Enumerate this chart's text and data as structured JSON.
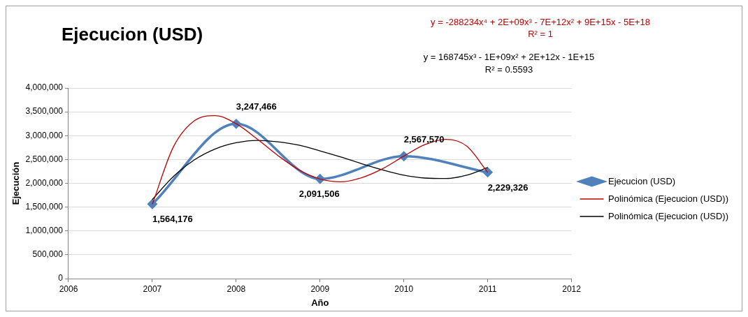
{
  "chart_data": {
    "type": "line",
    "title": "Ejecucion (USD)",
    "xlabel": "Año",
    "ylabel": "Ejecución",
    "x": [
      2007,
      2008,
      2009,
      2010,
      2011
    ],
    "series": [
      {
        "name": "Ejecucion (USD)",
        "color": "#4f81bd",
        "values": [
          1564176,
          3247466,
          2091506,
          2567570,
          2229326
        ],
        "value_labels": [
          "1,564,176",
          "3,247,466",
          "2,091,506",
          "2,567,570",
          "2,229,326"
        ],
        "marker": "diamond"
      },
      {
        "name": "Polinómica (Ejecucion (USD))",
        "color": "#c00000",
        "type": "line",
        "marker": "none",
        "x": [
          2007,
          2007.25,
          2007.5,
          2007.75,
          2008,
          2008.25,
          2008.5,
          2008.75,
          2009,
          2009.25,
          2009.5,
          2009.75,
          2010,
          2010.25,
          2010.5,
          2010.75,
          2011
        ],
        "values": [
          1560000,
          2760000,
          3310000,
          3420000,
          3250000,
          2930000,
          2580000,
          2280000,
          2090000,
          2030000,
          2120000,
          2310000,
          2570000,
          2810000,
          2920000,
          2780000,
          2230000
        ]
      },
      {
        "name": "Polinómica (Ejecucion (USD))",
        "color": "#000000",
        "type": "line",
        "marker": "none",
        "x": [
          2007,
          2007.25,
          2007.5,
          2007.75,
          2008,
          2008.25,
          2008.5,
          2008.75,
          2009,
          2009.25,
          2009.5,
          2009.75,
          2010,
          2010.25,
          2010.5,
          2010.75,
          2011
        ],
        "values": [
          1660000,
          2140000,
          2490000,
          2720000,
          2850000,
          2900000,
          2870000,
          2800000,
          2680000,
          2550000,
          2410000,
          2280000,
          2170000,
          2110000,
          2100000,
          2170000,
          2330000
        ]
      }
    ],
    "xlim": [
      2006,
      2012
    ],
    "xticks": [
      2006,
      2007,
      2008,
      2009,
      2010,
      2011,
      2012
    ],
    "ylim": [
      0,
      4000000
    ],
    "yticks": [
      0,
      {
        "value": 500000,
        "label": "500,000"
      },
      {
        "value": 1000000,
        "label": "1,000,000"
      },
      {
        "value": 1500000,
        "label": "1,500,000"
      },
      {
        "value": 2000000,
        "label": "2,000,000"
      },
      {
        "value": 2500000,
        "label": "2,500,000"
      },
      {
        "value": 3000000,
        "label": "3,000,000"
      },
      {
        "value": 3500000,
        "label": "3,500,000"
      },
      {
        "value": 4000000,
        "label": "4,000,000"
      }
    ],
    "grid": "y",
    "legend": "right",
    "annotations": [
      "y = -288234x⁴ + 2E+09x³ - 7E+12x² + 9E+15x - 5E+18",
      "R² = 1",
      "y = 168745x³ - 1E+09x² + 2E+12x - 1E+15",
      "R² = 0.5593"
    ]
  }
}
